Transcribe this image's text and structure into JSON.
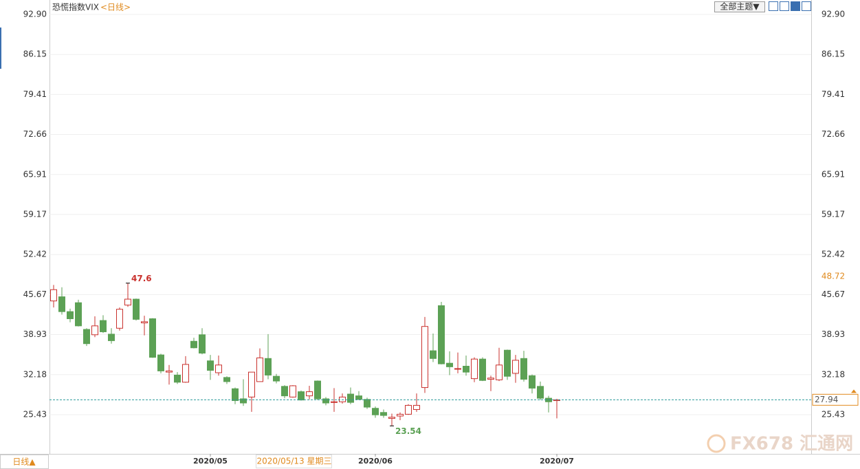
{
  "chart_data": {
    "type": "candlestick",
    "title": "恐慌指数VIX",
    "period_label": "<日线>",
    "theme_button": "全部主题▼",
    "period_button": "日线▲",
    "cursor_label": "2020/05/13 星期三",
    "watermark": "FX678 汇通网",
    "categories": [
      null,
      null,
      null,
      null,
      null,
      null,
      null,
      null,
      null,
      null,
      null,
      null,
      null,
      null,
      null,
      null,
      null,
      null,
      null,
      "2020/05",
      null,
      null,
      null,
      null,
      null,
      null,
      null,
      null,
      null,
      null,
      null,
      null,
      null,
      null,
      null,
      null,
      null,
      null,
      null,
      "2020/06",
      null,
      null,
      null,
      null,
      null,
      null,
      null,
      null,
      null,
      null,
      null,
      null,
      null,
      null,
      null,
      null,
      null,
      null,
      null,
      null,
      null,
      "2020/07"
    ],
    "open": [
      44.6,
      45.3,
      42.8,
      44.3,
      39.8,
      38.9,
      41.3,
      39.0,
      40.0,
      43.9,
      44.9,
      40.9,
      41.6,
      35.5,
      32.6,
      32.1,
      30.9,
      37.8,
      38.9,
      34.5,
      32.5,
      31.7,
      29.8,
      28.1,
      28.4,
      31.0,
      34.9,
      31.9,
      30.2,
      28.4,
      29.3,
      28.6,
      31.1,
      28.1,
      27.5,
      27.6,
      28.9,
      28.6,
      28.0,
      26.5,
      25.8,
      24.8,
      25.2,
      25.5,
      26.3,
      30.0,
      36.2,
      43.8,
      34.1,
      33.1,
      33.6,
      31.5,
      34.8,
      31.4,
      31.3,
      36.3,
      32.4,
      34.9,
      32.0,
      30.2,
      28.2,
      27.8
    ],
    "high": [
      47.3,
      46.9,
      43.3,
      44.8,
      40.0,
      42.0,
      42.2,
      40.0,
      43.5,
      47.6,
      45.0,
      42.1,
      41.7,
      35.7,
      33.8,
      32.6,
      35.3,
      38.4,
      40.0,
      35.5,
      35.4,
      31.9,
      30.0,
      31.4,
      32.6,
      36.6,
      39.0,
      32.3,
      30.4,
      30.4,
      29.5,
      30.3,
      31.2,
      28.4,
      29.9,
      29.0,
      30.0,
      29.4,
      28.3,
      26.8,
      26.3,
      25.6,
      25.8,
      27.2,
      29.0,
      41.9,
      39.1,
      44.44,
      36.1,
      35.9,
      35.4,
      35.1,
      35.1,
      32.0,
      36.7,
      36.4,
      35.5,
      36.2,
      32.2,
      31.0,
      28.6,
      28.1
    ],
    "low": [
      43.5,
      42.3,
      41.0,
      40.3,
      37.0,
      38.5,
      39.2,
      37.4,
      39.6,
      43.6,
      41.3,
      38.8,
      35.0,
      32.4,
      30.5,
      30.6,
      30.8,
      36.6,
      35.6,
      31.3,
      32.0,
      30.6,
      27.2,
      26.9,
      25.9,
      31.0,
      31.4,
      30.7,
      28.2,
      28.3,
      27.8,
      28.0,
      27.9,
      27.0,
      25.9,
      27.3,
      27.2,
      27.9,
      26.4,
      24.9,
      24.9,
      23.54,
      24.5,
      25.4,
      25.9,
      29.1,
      34.3,
      33.9,
      32.1,
      32.4,
      32.0,
      30.9,
      31.1,
      29.4,
      31.1,
      31.3,
      30.8,
      31.0,
      29.0,
      27.9,
      25.8,
      24.8
    ],
    "close": [
      46.5,
      42.8,
      41.6,
      40.4,
      37.4,
      40.4,
      39.4,
      37.9,
      43.2,
      44.9,
      41.5,
      41.1,
      35.1,
      32.8,
      32.8,
      30.9,
      33.9,
      36.7,
      35.8,
      32.9,
      33.8,
      31.0,
      27.8,
      27.4,
      32.6,
      35.0,
      32.1,
      31.1,
      28.6,
      30.3,
      27.9,
      29.3,
      28.1,
      27.4,
      27.6,
      28.4,
      27.5,
      28.0,
      26.7,
      25.4,
      25.3,
      25.0,
      25.5,
      27.0,
      27.0,
      40.3,
      34.9,
      34.0,
      33.5,
      33.2,
      32.6,
      34.8,
      31.2,
      31.6,
      33.8,
      31.9,
      34.6,
      31.4,
      29.9,
      28.2,
      27.6,
      27.94
    ],
    "up_color": "#c9302c",
    "down_color": "#5ca155",
    "last_color": "#2a9a9a",
    "ylim": [
      18.82,
      95.33
    ],
    "yticks": [
      {
        "value": 92.9,
        "label": "92.90"
      },
      86.15,
      79.41,
      72.66,
      65.91,
      59.17,
      52.42,
      45.67,
      38.93,
      32.18,
      25.43
    ],
    "right_marker": 48.72
  }
}
